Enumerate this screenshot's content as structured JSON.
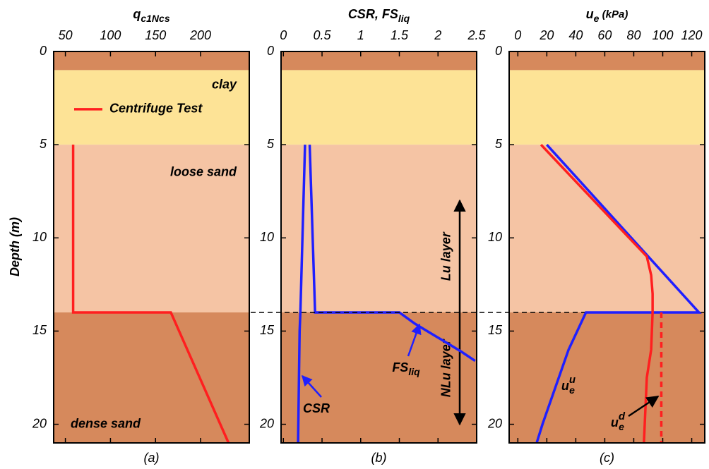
{
  "chart_data": [
    {
      "type": "line",
      "title": {
        "text": "q",
        "sub": "c1Ncs"
      },
      "caption": "(a)",
      "ylabel": "Depth (m)",
      "xlim": [
        37,
        254
      ],
      "xticks": [
        50,
        100,
        150,
        200
      ],
      "ylim": [
        0,
        21
      ],
      "yticks": [
        0,
        5,
        10,
        15,
        20
      ],
      "invert_y": true,
      "bands": [
        {
          "from": 0,
          "to": 1,
          "color": "#d6895c"
        },
        {
          "from": 1,
          "to": 5,
          "color": "#fde396"
        },
        {
          "from": 5,
          "to": 14,
          "color": "#f5c4a4"
        },
        {
          "from": 14,
          "to": 21,
          "color": "#d6895c"
        }
      ],
      "annotations": [
        "clay",
        "loose sand",
        "dense sand"
      ],
      "legend": true,
      "series": [
        {
          "name": "Centrifuge Test",
          "color": "#ff1f1f",
          "x": [
            58.6,
            58.6,
            167,
            231
          ],
          "y": [
            5,
            14,
            14,
            21
          ]
        }
      ]
    },
    {
      "type": "line",
      "title": {
        "text": "CSR, FS",
        "sub": "liq"
      },
      "caption": "(b)",
      "xlim": [
        -0.03,
        2.5
      ],
      "xticks": [
        0,
        0.5,
        1,
        1.5,
        2,
        2.5
      ],
      "ylim": [
        0,
        21
      ],
      "yticks": [
        0,
        5,
        10,
        15,
        20
      ],
      "invert_y": true,
      "bands": [
        {
          "from": 0,
          "to": 1,
          "color": "#d6895c"
        },
        {
          "from": 1,
          "to": 5,
          "color": "#fde396"
        },
        {
          "from": 5,
          "to": 14,
          "color": "#f5c4a4"
        },
        {
          "from": 14,
          "to": 21,
          "color": "#d6895c"
        }
      ],
      "annotations": [
        "Lu  layer",
        "NLu  layer"
      ],
      "legend": false,
      "series": [
        {
          "name": "CSR",
          "color": "#1f1fff",
          "x": [
            0.28,
            0.22,
            0.21,
            0.2,
            0.19
          ],
          "y": [
            5,
            14,
            15,
            18,
            21
          ]
        },
        {
          "name": {
            "text": "FS",
            "sub": "liq"
          },
          "color": "#1f1fff",
          "x": [
            0.34,
            0.41,
            1.5,
            1.7,
            1.9,
            2.1,
            2.3,
            2.48
          ],
          "y": [
            5,
            14,
            14,
            14.6,
            15.1,
            15.6,
            16.1,
            16.6
          ]
        }
      ]
    },
    {
      "type": "line",
      "title": {
        "text": "u",
        "sub": "e",
        "rest": " (kPa)"
      },
      "caption": "(c)",
      "xlim": [
        -6,
        129
      ],
      "xticks": [
        0,
        20,
        40,
        60,
        80,
        100,
        120
      ],
      "ylim": [
        0,
        21
      ],
      "yticks": [
        0,
        5,
        10,
        15,
        20
      ],
      "invert_y": true,
      "bands": [
        {
          "from": 0,
          "to": 1,
          "color": "#d6895c"
        },
        {
          "from": 1,
          "to": 5,
          "color": "#fde396"
        },
        {
          "from": 5,
          "to": 14,
          "color": "#f5c4a4"
        },
        {
          "from": 14,
          "to": 21,
          "color": "#d6895c"
        }
      ],
      "legend": false,
      "depth_line": 14,
      "series": [
        {
          "name": {
            "text": "u",
            "sub": "e",
            "sup": "u"
          },
          "color": "#1f1fff",
          "x": [
            20,
            125,
            47,
            35,
            26,
            17,
            13
          ],
          "y": [
            5,
            14,
            14,
            16,
            18,
            20,
            21
          ]
        },
        {
          "name": {
            "text": "u",
            "sub": "e",
            "sup": "d"
          },
          "color": "#ff1f1f",
          "x": [
            16,
            22,
            89,
            92,
            93,
            93,
            92,
            90,
            89,
            87
          ],
          "y": [
            5,
            5.5,
            11,
            12,
            13,
            14,
            16,
            17,
            17.5,
            21
          ]
        },
        {
          "color": "#ff1f1f",
          "dashed": true,
          "x": [
            99,
            99
          ],
          "y": [
            14,
            21
          ]
        }
      ]
    }
  ]
}
